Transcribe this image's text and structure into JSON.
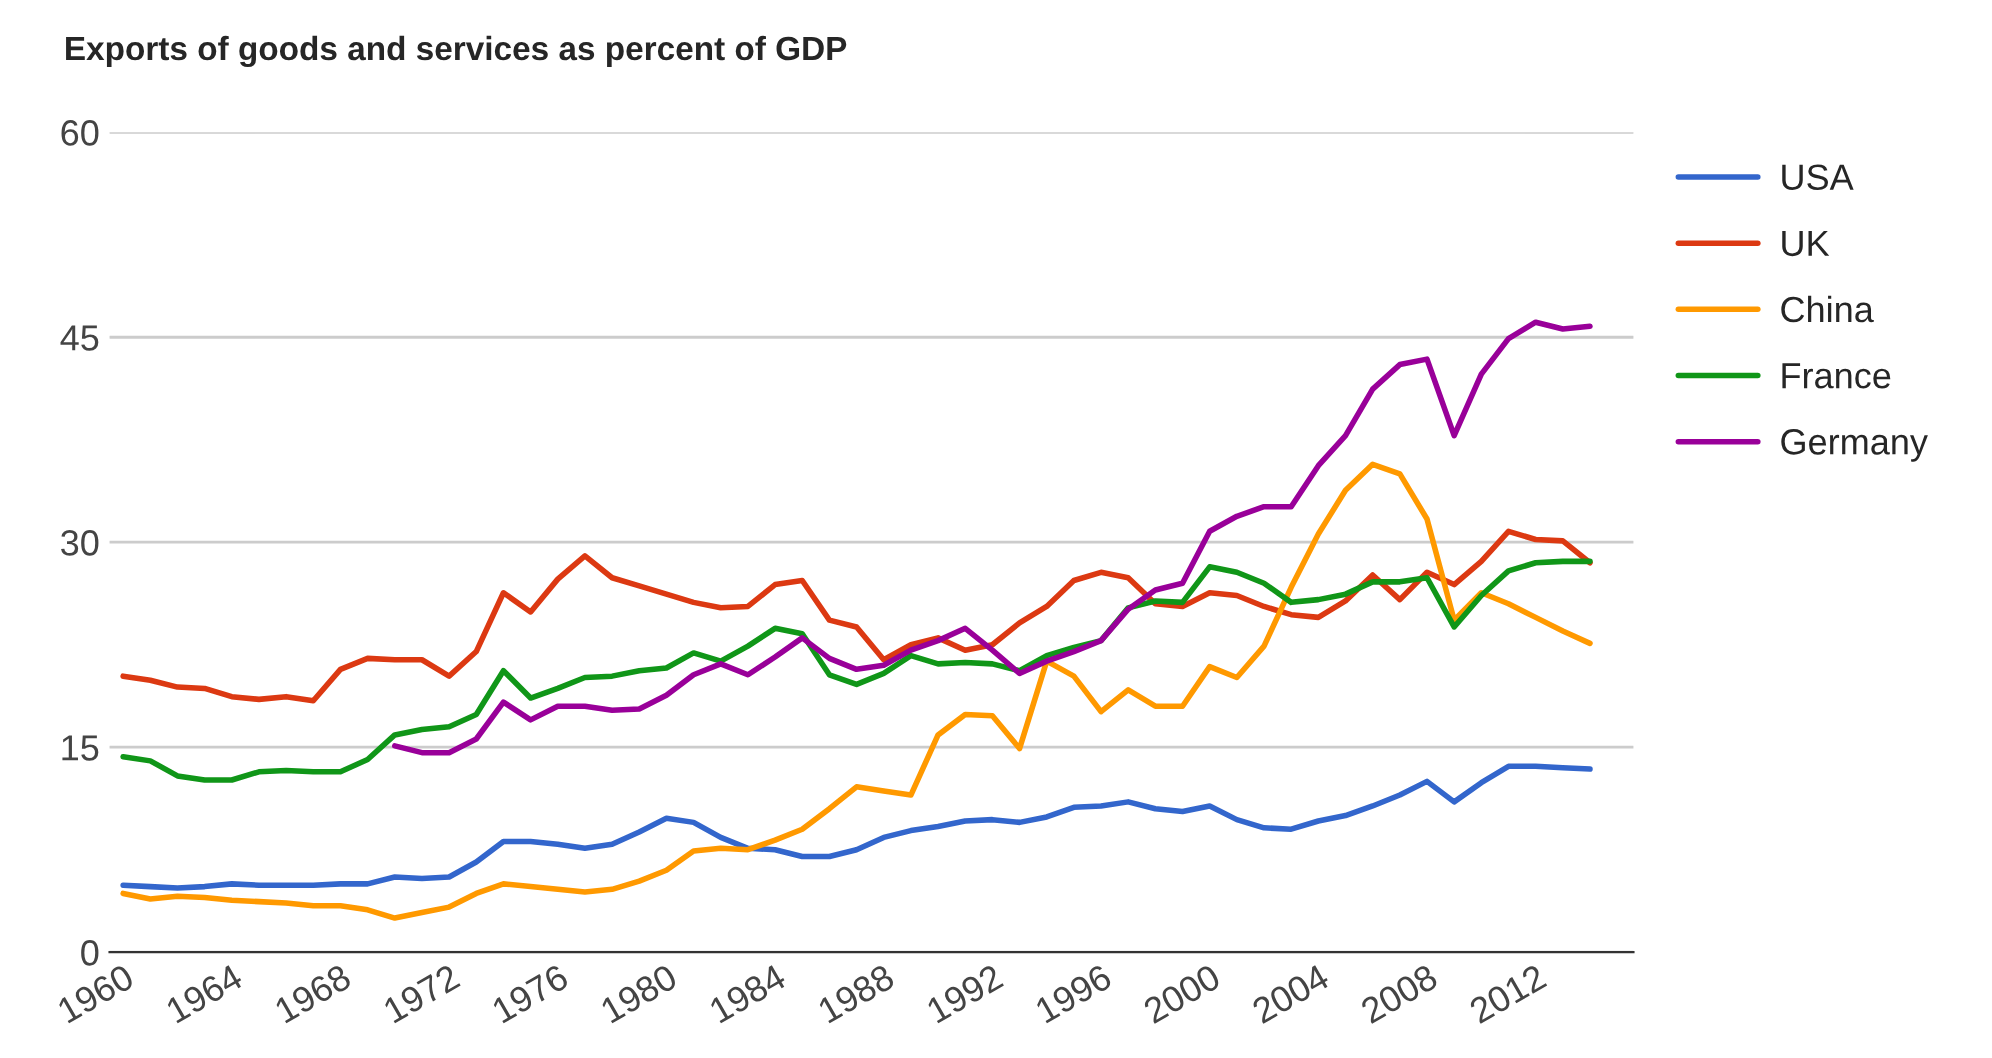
{
  "chart_data": {
    "type": "line",
    "title": "Exports of goods and services as percent of GDP",
    "x": [
      1960,
      1961,
      1962,
      1963,
      1964,
      1965,
      1966,
      1967,
      1968,
      1969,
      1970,
      1971,
      1972,
      1973,
      1974,
      1975,
      1976,
      1977,
      1978,
      1979,
      1980,
      1981,
      1982,
      1983,
      1984,
      1985,
      1986,
      1987,
      1988,
      1989,
      1990,
      1991,
      1992,
      1993,
      1994,
      1995,
      1996,
      1997,
      1998,
      1999,
      2000,
      2001,
      2002,
      2003,
      2004,
      2005,
      2006,
      2007,
      2008,
      2009,
      2010,
      2011,
      2012,
      2013,
      2014
    ],
    "series": [
      {
        "name": "USA",
        "color": "#3366cc",
        "values": [
          4.9,
          4.8,
          4.7,
          4.8,
          5.0,
          4.9,
          4.9,
          4.9,
          5.0,
          5.0,
          5.5,
          5.4,
          5.5,
          6.6,
          8.1,
          8.1,
          7.9,
          7.6,
          7.9,
          8.8,
          9.8,
          9.5,
          8.4,
          7.6,
          7.5,
          7.0,
          7.0,
          7.5,
          8.4,
          8.9,
          9.2,
          9.6,
          9.7,
          9.5,
          9.9,
          10.6,
          10.7,
          11.0,
          10.5,
          10.3,
          10.7,
          9.7,
          9.1,
          9.0,
          9.6,
          10.0,
          10.7,
          11.5,
          12.5,
          11.0,
          12.4,
          13.6,
          13.6,
          13.5,
          13.4
        ]
      },
      {
        "name": "UK",
        "color": "#dc3912",
        "values": [
          20.2,
          19.9,
          19.4,
          19.3,
          18.7,
          18.5,
          18.7,
          18.4,
          20.7,
          21.5,
          21.4,
          21.4,
          20.2,
          22.0,
          26.3,
          24.9,
          27.3,
          29.0,
          27.4,
          26.8,
          26.2,
          25.6,
          25.2,
          25.3,
          26.9,
          27.2,
          24.3,
          23.8,
          21.4,
          22.5,
          23.0,
          22.1,
          22.5,
          24.1,
          25.3,
          27.2,
          27.8,
          27.4,
          25.5,
          25.3,
          26.3,
          26.1,
          25.3,
          24.7,
          24.5,
          25.7,
          27.6,
          25.8,
          27.8,
          26.9,
          28.6,
          30.8,
          30.2,
          30.1,
          28.5
        ]
      },
      {
        "name": "China",
        "color": "#ff9900",
        "values": [
          4.3,
          3.9,
          4.1,
          4.0,
          3.8,
          3.7,
          3.6,
          3.4,
          3.4,
          3.1,
          2.5,
          2.9,
          3.3,
          4.3,
          5.0,
          4.8,
          4.6,
          4.4,
          4.6,
          5.2,
          6.0,
          7.4,
          7.6,
          7.5,
          8.2,
          9.0,
          10.5,
          12.1,
          11.8,
          11.5,
          15.9,
          17.4,
          17.3,
          14.9,
          21.3,
          20.2,
          17.6,
          19.2,
          18.0,
          18.0,
          20.9,
          20.1,
          22.4,
          26.7,
          30.6,
          33.8,
          35.7,
          35.0,
          31.7,
          24.3,
          26.3,
          25.5,
          24.5,
          23.5,
          22.6
        ]
      },
      {
        "name": "France",
        "color": "#109618",
        "values": [
          14.3,
          14.0,
          12.9,
          12.6,
          12.6,
          13.2,
          13.3,
          13.2,
          13.2,
          14.1,
          15.9,
          16.3,
          16.5,
          17.4,
          20.6,
          18.6,
          19.3,
          20.1,
          20.2,
          20.6,
          20.8,
          21.9,
          21.3,
          22.4,
          23.7,
          23.3,
          20.3,
          19.6,
          20.4,
          21.7,
          21.1,
          21.2,
          21.1,
          20.6,
          21.7,
          22.3,
          22.8,
          25.2,
          25.7,
          25.6,
          28.2,
          27.8,
          27.0,
          25.6,
          25.8,
          26.2,
          27.1,
          27.1,
          27.4,
          23.8,
          26.1,
          27.9,
          28.5,
          28.6,
          28.6
        ]
      },
      {
        "name": "Germany",
        "color": "#990099",
        "values": [
          null,
          null,
          null,
          null,
          null,
          null,
          null,
          null,
          null,
          null,
          15.1,
          14.6,
          14.6,
          15.6,
          18.3,
          17.0,
          18.0,
          18.0,
          17.7,
          17.8,
          18.8,
          20.3,
          21.1,
          20.3,
          21.6,
          23.0,
          21.5,
          20.7,
          21.0,
          22.1,
          22.8,
          23.7,
          22.1,
          20.4,
          21.3,
          22.0,
          22.8,
          25.1,
          26.5,
          27.0,
          30.8,
          31.9,
          32.6,
          32.6,
          35.6,
          37.8,
          41.2,
          43.0,
          43.4,
          37.8,
          42.3,
          44.9,
          46.1,
          45.6,
          45.8
        ]
      }
    ],
    "xlim": [
      1959.5,
      2015.6
    ],
    "xticks": [
      1960,
      1964,
      1968,
      1972,
      1976,
      1980,
      1984,
      1988,
      1992,
      1996,
      2000,
      2004,
      2008,
      2012
    ],
    "ylim": [
      0,
      60
    ],
    "yticks": [
      0,
      15,
      30,
      45,
      60
    ],
    "grid": "y",
    "legend": "right",
    "line_style": "solid",
    "marker": "none"
  }
}
